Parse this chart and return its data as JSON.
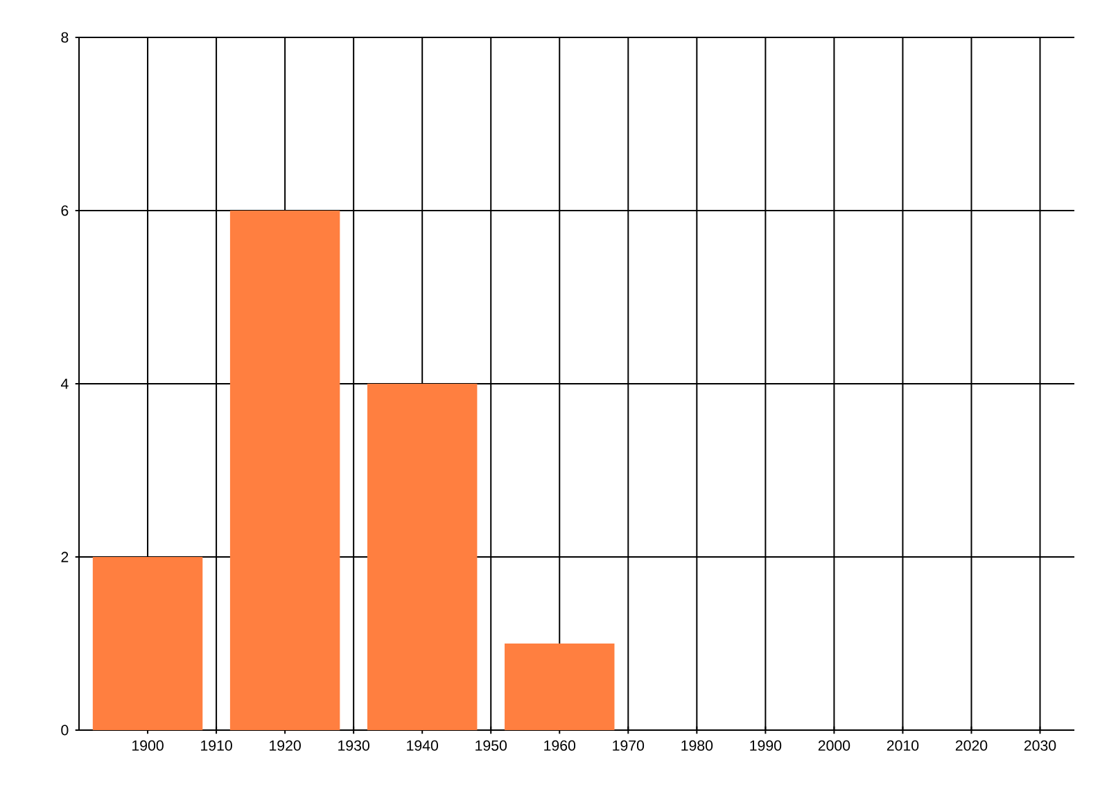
{
  "chart_data": {
    "type": "bar",
    "x": [
      1900,
      1920,
      1940,
      1960
    ],
    "values": [
      2,
      6,
      4,
      1
    ],
    "color": "#ff7f40",
    "xlim": [
      1890,
      2035
    ],
    "ylim": [
      0,
      8
    ],
    "xticks": [
      1900,
      1910,
      1920,
      1930,
      1940,
      1950,
      1960,
      1970,
      1980,
      1990,
      2000,
      2010,
      2020,
      2030
    ],
    "yticks": [
      0,
      2,
      4,
      6,
      8
    ],
    "grid": true
  }
}
